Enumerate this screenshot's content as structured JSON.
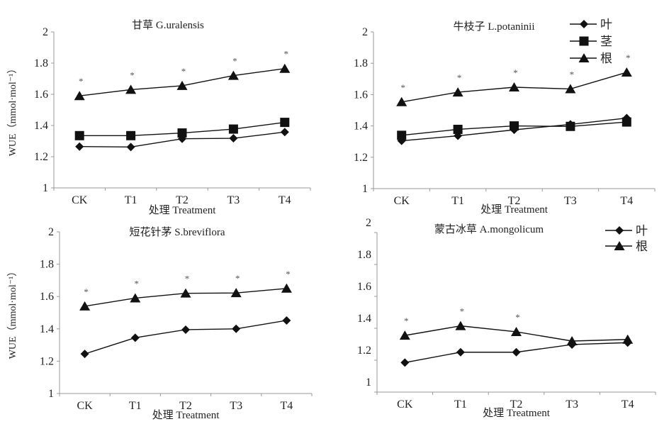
{
  "chart_data": [
    {
      "type": "line",
      "title": "甘草 G.uralensis",
      "xlabel": "处理 Treatment",
      "ylabel": "WUE（mmol·mol⁻¹）",
      "categories": [
        "CK",
        "T1",
        "T2",
        "T3",
        "T4"
      ],
      "ylim": [
        1,
        2
      ],
      "yticks": [
        "1",
        "1.2",
        "1.4",
        "1.6",
        "1.8",
        "2"
      ],
      "legend": null,
      "series": [
        {
          "name": "叶",
          "marker": "diamond",
          "values": [
            1.265,
            1.262,
            1.315,
            1.318,
            1.358
          ]
        },
        {
          "name": "茎",
          "marker": "square",
          "values": [
            1.335,
            1.335,
            1.352,
            1.377,
            1.42
          ]
        },
        {
          "name": "根",
          "marker": "triangle",
          "values": [
            1.59,
            1.63,
            1.655,
            1.72,
            1.765
          ]
        }
      ],
      "significance": [
        "*",
        "*",
        "*",
        "*",
        "*"
      ]
    },
    {
      "type": "line",
      "title": "牛枝子 L.potaninii",
      "xlabel": "处理 Treatment",
      "ylabel": "",
      "categories": [
        "CK",
        "T1",
        "T2",
        "T3",
        "T4"
      ],
      "ylim": [
        1,
        2
      ],
      "yticks": [
        "1",
        "1.2",
        "1.4",
        "1.6",
        "1.8",
        "2"
      ],
      "legend": "top-right",
      "series": [
        {
          "name": "叶",
          "marker": "diamond",
          "values": [
            1.305,
            1.337,
            1.375,
            1.41,
            1.45
          ]
        },
        {
          "name": "茎",
          "marker": "square",
          "values": [
            1.34,
            1.378,
            1.4,
            1.397,
            1.425
          ]
        },
        {
          "name": "根",
          "marker": "triangle",
          "values": [
            1.553,
            1.615,
            1.647,
            1.636,
            1.742
          ]
        }
      ],
      "significance": [
        "*",
        "*",
        "*",
        "*",
        "*"
      ]
    },
    {
      "type": "line",
      "title": "短花针茅 S.breviflora",
      "xlabel": "处理 Treatment",
      "ylabel": "WUE（mmol·mol⁻¹）",
      "categories": [
        "CK",
        "T1",
        "T2",
        "T3",
        "T4"
      ],
      "ylim": [
        1,
        2
      ],
      "yticks": [
        "1",
        "1.2",
        "1.4",
        "1.6",
        "1.8",
        "2"
      ],
      "legend": null,
      "series": [
        {
          "name": "叶",
          "marker": "diamond",
          "values": [
            1.245,
            1.345,
            1.395,
            1.4,
            1.452
          ]
        },
        {
          "name": "根",
          "marker": "triangle",
          "values": [
            1.54,
            1.59,
            1.62,
            1.622,
            1.65
          ]
        }
      ],
      "significance": [
        "*",
        "*",
        "*",
        "*",
        "*"
      ]
    },
    {
      "type": "line",
      "title": "蒙古冰草 A.mongolicum",
      "xlabel": "处理 Treatment",
      "ylabel": "",
      "categories": [
        "CK",
        "T1",
        "T2",
        "T3",
        "T4"
      ],
      "ylim": [
        1,
        2
      ],
      "yticks": [
        "1",
        "1.2",
        "1.4",
        "1.6",
        "1.8",
        "2"
      ],
      "legend": "top-right",
      "series": [
        {
          "name": "叶",
          "marker": "diamond",
          "values": [
            1.185,
            1.25,
            1.25,
            1.298,
            1.31
          ]
        },
        {
          "name": "根",
          "marker": "triangle",
          "values": [
            1.355,
            1.415,
            1.378,
            1.32,
            1.33
          ]
        }
      ],
      "significance": [
        "*",
        "*",
        "*",
        "",
        ""
      ]
    }
  ]
}
